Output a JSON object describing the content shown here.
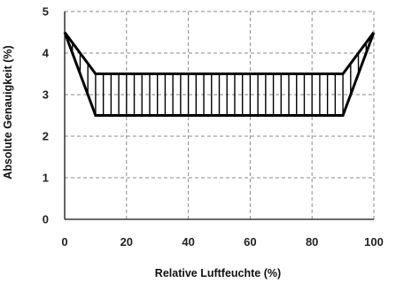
{
  "chart_data": {
    "type": "area",
    "xlabel": "Relative Luftfeuchte (%)",
    "ylabel": "Absolute Genauigkeit (%)",
    "xlim": [
      0,
      100
    ],
    "ylim": [
      0,
      5
    ],
    "x_ticks": [
      0,
      20,
      40,
      60,
      80,
      100
    ],
    "y_ticks": [
      0,
      1,
      2,
      3,
      4,
      5
    ],
    "grid": "dashed",
    "legend": "none",
    "series": [
      {
        "x": [
          0,
          10,
          90,
          100
        ],
        "values": [
          4.5,
          3.5,
          3.5,
          4.5
        ]
      },
      {
        "x": [
          0,
          10,
          90,
          100
        ],
        "values": [
          4.5,
          2.5,
          2.5,
          4.5
        ]
      }
    ],
    "band_fill": "vertical-hatch",
    "color": "#000000"
  }
}
